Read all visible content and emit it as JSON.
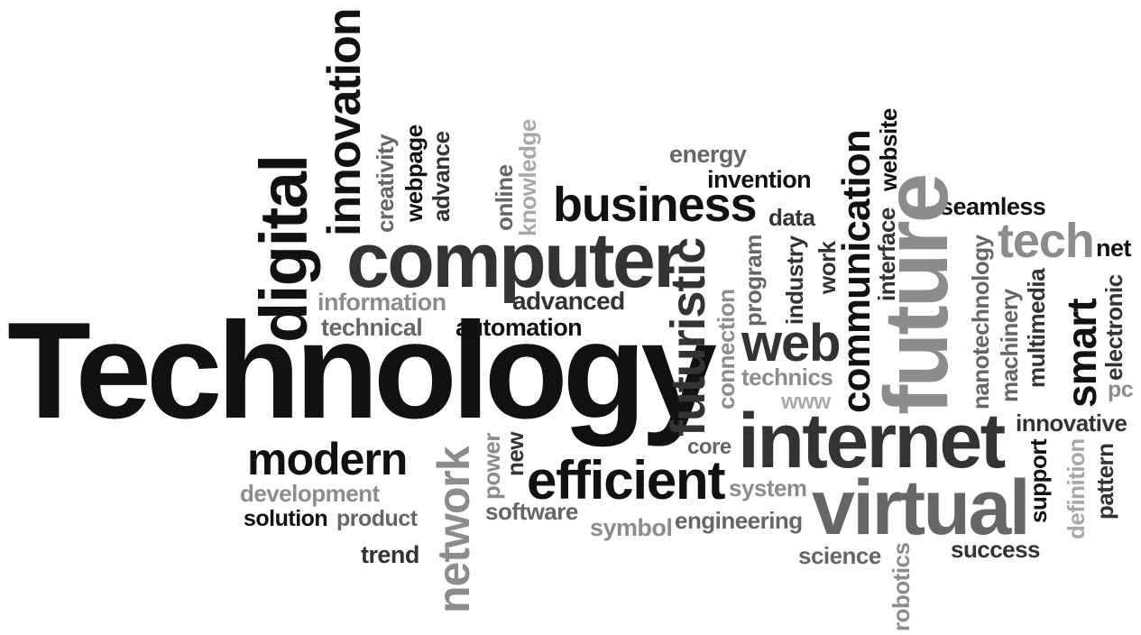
{
  "words": {
    "technology": "Technology",
    "digital": "digital",
    "innovation": "innovation",
    "creativity": "creativity",
    "webpage": "webpage",
    "advance": "advance",
    "online": "online",
    "knowledge": "knowledge",
    "computer": "computer",
    "information": "information",
    "technical": "technical",
    "automation": "automation",
    "advanced": "advanced",
    "business": "business",
    "energy": "energy",
    "invention": "invention",
    "data": "data",
    "futuristic": "futuristic",
    "connection": "connection",
    "program": "program",
    "industry": "industry",
    "work": "work",
    "web": "web",
    "technics": "technics",
    "www": "www",
    "communication": "communication",
    "interface": "interface",
    "website": "website",
    "future": "future",
    "seamless": "seamless",
    "tech": "tech",
    "net": "net",
    "nanotechnology": "nanotechnology",
    "machinery": "machinery",
    "multimedia": "multimedia",
    "smart": "smart",
    "electronic": "electronic",
    "pc": "pc",
    "modern": "modern",
    "development": "development",
    "solution": "solution",
    "product": "product",
    "trend": "trend",
    "network": "network",
    "power": "power",
    "new": "new",
    "software": "software",
    "efficient": "efficient",
    "symbol": "symbol",
    "core": "core",
    "internet": "internet",
    "system": "system",
    "engineering": "engineering",
    "virtual": "virtual",
    "science": "science",
    "robotics": "robotics",
    "innovative": "innovative",
    "support": "support",
    "definition": "definition",
    "pattern": "pattern",
    "success": "success"
  }
}
